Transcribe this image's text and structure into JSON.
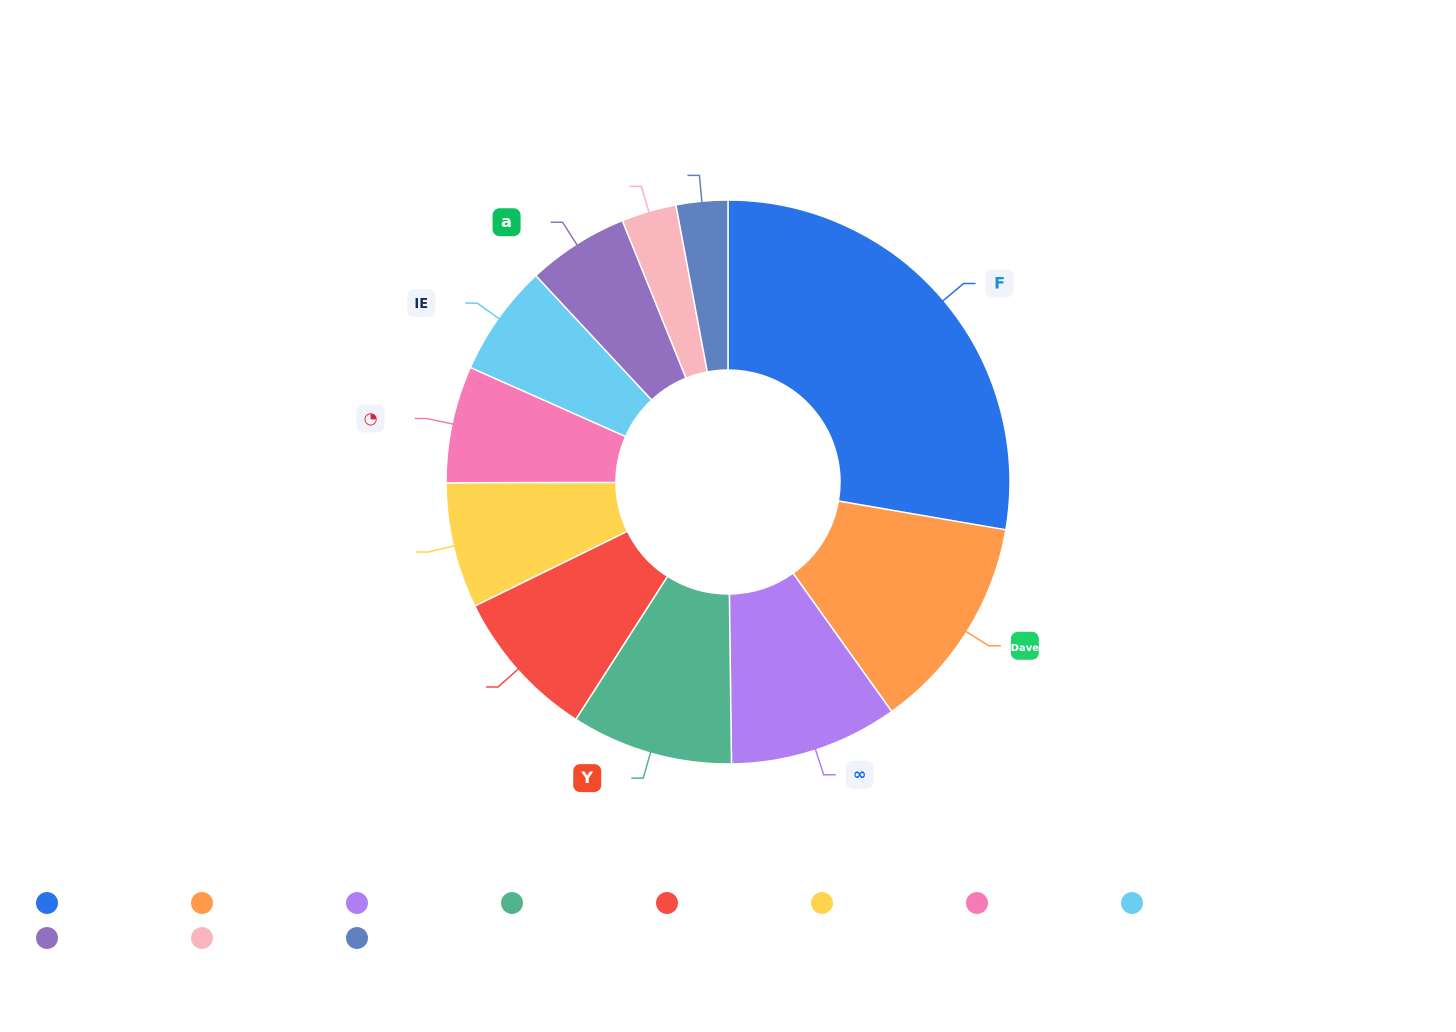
{
  "chart_data": {
    "type": "pie",
    "donut": true,
    "start_angle_deg": 90,
    "direction": "clockwise",
    "legend_position": "bottom",
    "slices": [
      {
        "label": "",
        "value": 28.1,
        "color": "#2872EA",
        "icon": {
          "name": "fluid-f-logo-icon",
          "bg": "#F0F3FA",
          "fg": "#1E8FD6",
          "glyph": "F"
        }
      },
      {
        "label": "",
        "value": 12.6,
        "color": "#FF9A4A",
        "icon": {
          "name": "dave-logo-icon",
          "bg": "#1FD36B",
          "fg": "#FFFFFF",
          "glyph": "Dave"
        }
      },
      {
        "label": "",
        "value": 9.8,
        "color": "#B07EF2",
        "icon": {
          "name": "meta-logo-icon",
          "bg": "#F0F3FA",
          "fg": "#0A66E4",
          "glyph": "∞"
        }
      },
      {
        "label": "",
        "value": 9.4,
        "color": "#52B38F",
        "icon": {
          "name": "ycombinator-logo-icon",
          "bg": "#F24B2A",
          "fg": "#FFFFFF",
          "glyph": "Y"
        }
      },
      {
        "label": "",
        "value": 8.8,
        "color": "#F74C43",
        "icon": {
          "name": "",
          "bg": "",
          "fg": "",
          "glyph": ""
        }
      },
      {
        "label": "",
        "value": 7.3,
        "color": "#FFD54F",
        "icon": {
          "name": "",
          "bg": "",
          "fg": "",
          "glyph": ""
        }
      },
      {
        "label": "",
        "value": 6.8,
        "color": "#F77AB6",
        "icon": {
          "name": "swirl-logo-icon",
          "bg": "#F0F3FA",
          "fg": "#D8243A",
          "glyph": "◔"
        }
      },
      {
        "label": "",
        "value": 6.5,
        "color": "#69CEF2",
        "icon": {
          "name": "ie-logo-icon",
          "bg": "#F0F3FA",
          "fg": "#1A2C5B",
          "glyph": "IE"
        }
      },
      {
        "label": "",
        "value": 5.9,
        "color": "#9170C0",
        "icon": {
          "name": "green-square-logo-icon",
          "bg": "#0CC15D",
          "fg": "#FFFFFF",
          "glyph": "a"
        }
      },
      {
        "label": "",
        "value": 3.2,
        "color": "#F9B7BD",
        "icon": {
          "name": "",
          "bg": "",
          "fg": "",
          "glyph": ""
        }
      },
      {
        "label": "",
        "value": 3.0,
        "color": "#6081BF",
        "icon": {
          "name": "",
          "bg": "",
          "fg": "",
          "glyph": ""
        }
      }
    ]
  }
}
